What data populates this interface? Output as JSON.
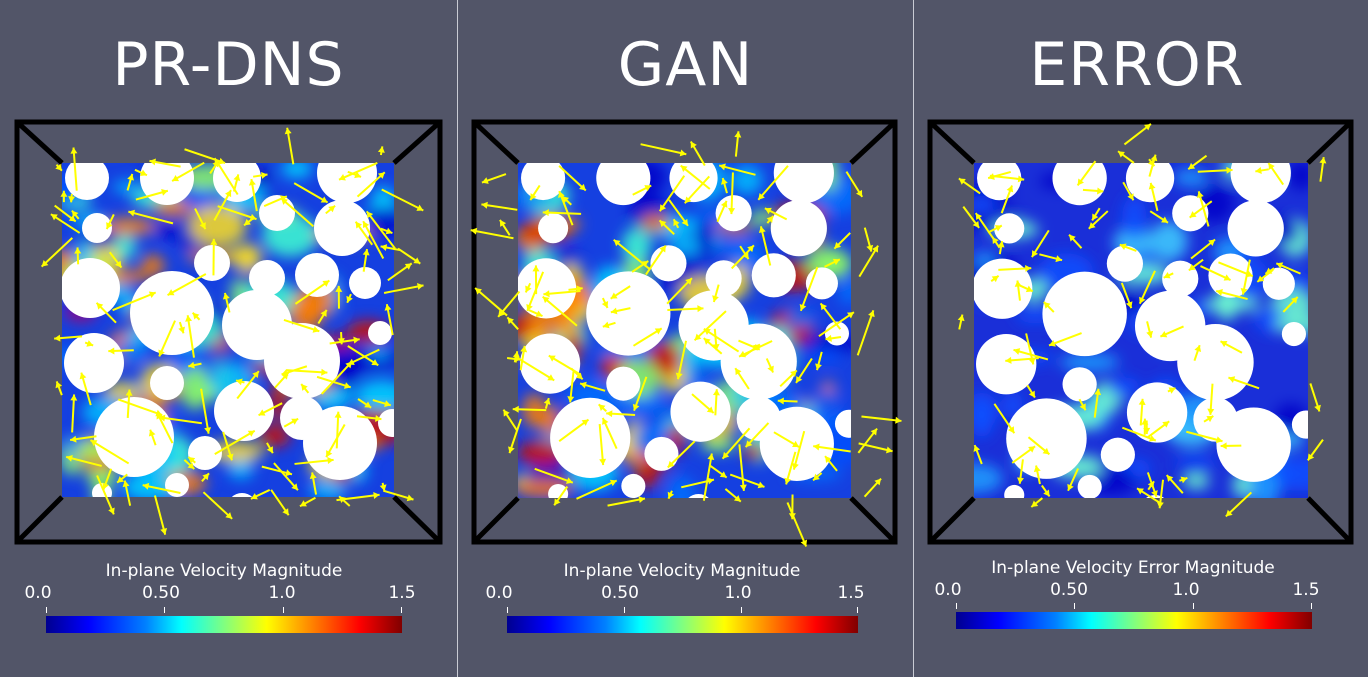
{
  "panels": [
    {
      "title": "PR-DNS",
      "colorbar_title": "In-plane Velocity Magnitude",
      "ticks": [
        "0.0",
        "0.50",
        "1.0",
        "1.5"
      ]
    },
    {
      "title": "GAN",
      "colorbar_title": "In-plane Velocity Magnitude",
      "ticks": [
        "0.0",
        "0.50",
        "1.0",
        "1.5"
      ]
    },
    {
      "title": "ERROR",
      "colorbar_title": "In-plane Velocity Error Magnitude",
      "ticks": [
        "0.0",
        "0.50",
        "1.0",
        "1.5"
      ]
    }
  ],
  "colors": {
    "background": "#525568",
    "arrows": "#ffff00",
    "frame": "#000000"
  },
  "colorbar_range": [
    0.0,
    1.5
  ]
}
